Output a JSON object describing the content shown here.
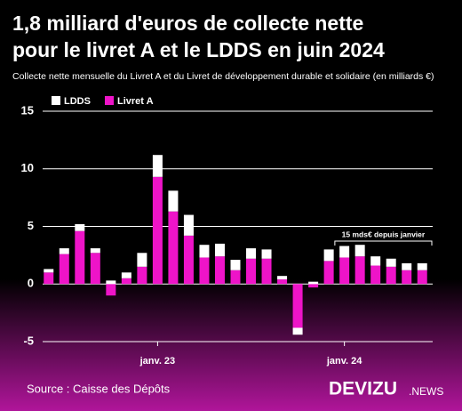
{
  "chart_data": {
    "type": "stacked_bar",
    "title": [
      "1,8 milliard d'euros de collecte nette",
      "pour le livret A et le LDDS en juin 2024"
    ],
    "subtitle": "Collecte nette mensuelle du Livret A et du Livret de développement durable et solidaire (en milliards €)",
    "categories": [
      null,
      null,
      null,
      null,
      null,
      null,
      null,
      "janv. 23",
      null,
      null,
      null,
      null,
      null,
      null,
      null,
      null,
      null,
      null,
      null,
      "janv. 24",
      null,
      null,
      null,
      null,
      null
    ],
    "series": [
      {
        "name": "Livret A",
        "color": "#ee14c8",
        "values": [
          1.0,
          2.6,
          4.6,
          2.7,
          -1.0,
          0.5,
          1.5,
          9.3,
          6.3,
          4.2,
          2.3,
          2.4,
          1.2,
          2.2,
          2.2,
          0.4,
          -3.8,
          -0.3,
          2.0,
          2.3,
          2.4,
          1.6,
          1.5,
          1.2,
          1.2
        ]
      },
      {
        "name": "LDDS",
        "color": "#ffffff",
        "values": [
          0.3,
          0.5,
          0.6,
          0.4,
          0.3,
          0.5,
          1.2,
          1.9,
          1.8,
          1.8,
          1.1,
          1.1,
          0.9,
          0.9,
          0.8,
          0.3,
          -0.6,
          0.2,
          1.0,
          1.0,
          1.0,
          0.8,
          0.7,
          0.6,
          0.6
        ]
      }
    ],
    "legend_order": [
      "LDDS",
      "Livret A"
    ],
    "ylim": [
      -5,
      15
    ],
    "yticks": [
      -5,
      0,
      5,
      10,
      15
    ],
    "grid": true,
    "annotation": "15 mds€ depuis janvier",
    "source": "Source : Caisse des Dépôts",
    "brand": "DEVIZU",
    "brand_suffix": ".NEWS"
  }
}
